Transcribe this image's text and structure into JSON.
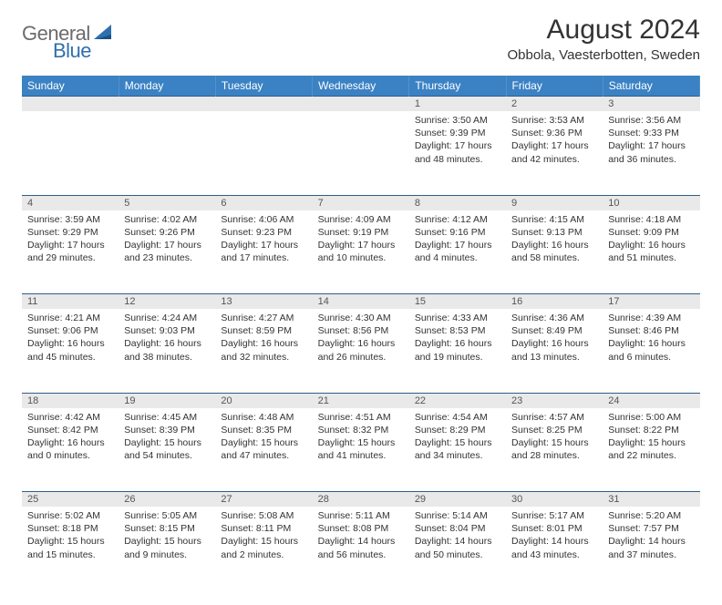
{
  "brand": {
    "text1": "General",
    "text2": "Blue",
    "text1_color": "#6b6b6b",
    "text2_color": "#2f6fb0",
    "icon_color": "#2f6fb0"
  },
  "title": "August 2024",
  "location": "Obbola, Vaesterbotten, Sweden",
  "header_bg": "#3b82c4",
  "header_fg": "#ffffff",
  "daynum_bg": "#e9e9e9",
  "border_color": "#2e5d8a",
  "day_headers": [
    "Sunday",
    "Monday",
    "Tuesday",
    "Wednesday",
    "Thursday",
    "Friday",
    "Saturday"
  ],
  "weeks": [
    [
      null,
      null,
      null,
      null,
      {
        "n": "1",
        "sr": "3:50 AM",
        "ss": "9:39 PM",
        "dl": "17 hours and 48 minutes."
      },
      {
        "n": "2",
        "sr": "3:53 AM",
        "ss": "9:36 PM",
        "dl": "17 hours and 42 minutes."
      },
      {
        "n": "3",
        "sr": "3:56 AM",
        "ss": "9:33 PM",
        "dl": "17 hours and 36 minutes."
      }
    ],
    [
      {
        "n": "4",
        "sr": "3:59 AM",
        "ss": "9:29 PM",
        "dl": "17 hours and 29 minutes."
      },
      {
        "n": "5",
        "sr": "4:02 AM",
        "ss": "9:26 PM",
        "dl": "17 hours and 23 minutes."
      },
      {
        "n": "6",
        "sr": "4:06 AM",
        "ss": "9:23 PM",
        "dl": "17 hours and 17 minutes."
      },
      {
        "n": "7",
        "sr": "4:09 AM",
        "ss": "9:19 PM",
        "dl": "17 hours and 10 minutes."
      },
      {
        "n": "8",
        "sr": "4:12 AM",
        "ss": "9:16 PM",
        "dl": "17 hours and 4 minutes."
      },
      {
        "n": "9",
        "sr": "4:15 AM",
        "ss": "9:13 PM",
        "dl": "16 hours and 58 minutes."
      },
      {
        "n": "10",
        "sr": "4:18 AM",
        "ss": "9:09 PM",
        "dl": "16 hours and 51 minutes."
      }
    ],
    [
      {
        "n": "11",
        "sr": "4:21 AM",
        "ss": "9:06 PM",
        "dl": "16 hours and 45 minutes."
      },
      {
        "n": "12",
        "sr": "4:24 AM",
        "ss": "9:03 PM",
        "dl": "16 hours and 38 minutes."
      },
      {
        "n": "13",
        "sr": "4:27 AM",
        "ss": "8:59 PM",
        "dl": "16 hours and 32 minutes."
      },
      {
        "n": "14",
        "sr": "4:30 AM",
        "ss": "8:56 PM",
        "dl": "16 hours and 26 minutes."
      },
      {
        "n": "15",
        "sr": "4:33 AM",
        "ss": "8:53 PM",
        "dl": "16 hours and 19 minutes."
      },
      {
        "n": "16",
        "sr": "4:36 AM",
        "ss": "8:49 PM",
        "dl": "16 hours and 13 minutes."
      },
      {
        "n": "17",
        "sr": "4:39 AM",
        "ss": "8:46 PM",
        "dl": "16 hours and 6 minutes."
      }
    ],
    [
      {
        "n": "18",
        "sr": "4:42 AM",
        "ss": "8:42 PM",
        "dl": "16 hours and 0 minutes."
      },
      {
        "n": "19",
        "sr": "4:45 AM",
        "ss": "8:39 PM",
        "dl": "15 hours and 54 minutes."
      },
      {
        "n": "20",
        "sr": "4:48 AM",
        "ss": "8:35 PM",
        "dl": "15 hours and 47 minutes."
      },
      {
        "n": "21",
        "sr": "4:51 AM",
        "ss": "8:32 PM",
        "dl": "15 hours and 41 minutes."
      },
      {
        "n": "22",
        "sr": "4:54 AM",
        "ss": "8:29 PM",
        "dl": "15 hours and 34 minutes."
      },
      {
        "n": "23",
        "sr": "4:57 AM",
        "ss": "8:25 PM",
        "dl": "15 hours and 28 minutes."
      },
      {
        "n": "24",
        "sr": "5:00 AM",
        "ss": "8:22 PM",
        "dl": "15 hours and 22 minutes."
      }
    ],
    [
      {
        "n": "25",
        "sr": "5:02 AM",
        "ss": "8:18 PM",
        "dl": "15 hours and 15 minutes."
      },
      {
        "n": "26",
        "sr": "5:05 AM",
        "ss": "8:15 PM",
        "dl": "15 hours and 9 minutes."
      },
      {
        "n": "27",
        "sr": "5:08 AM",
        "ss": "8:11 PM",
        "dl": "15 hours and 2 minutes."
      },
      {
        "n": "28",
        "sr": "5:11 AM",
        "ss": "8:08 PM",
        "dl": "14 hours and 56 minutes."
      },
      {
        "n": "29",
        "sr": "5:14 AM",
        "ss": "8:04 PM",
        "dl": "14 hours and 50 minutes."
      },
      {
        "n": "30",
        "sr": "5:17 AM",
        "ss": "8:01 PM",
        "dl": "14 hours and 43 minutes."
      },
      {
        "n": "31",
        "sr": "5:20 AM",
        "ss": "7:57 PM",
        "dl": "14 hours and 37 minutes."
      }
    ]
  ],
  "labels": {
    "sunrise": "Sunrise:",
    "sunset": "Sunset:",
    "daylight": "Daylight:"
  }
}
